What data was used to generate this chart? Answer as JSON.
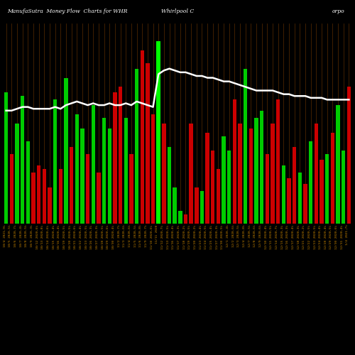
{
  "title_left": "ManufaSutra  Money Flow  Charts for WHR",
  "title_mid": "Whirlpool C",
  "title_right": "orpo",
  "background_color": "#000000",
  "bar_grid_color": "#8B4500",
  "highlight_bar_color": "#00FF00",
  "line_color": "#FFFFFF",
  "bar_colors": [
    "green",
    "red",
    "green",
    "green",
    "green",
    "red",
    "red",
    "red",
    "red",
    "green",
    "red",
    "green",
    "red",
    "green",
    "green",
    "red",
    "green",
    "red",
    "green",
    "green",
    "red",
    "red",
    "green",
    "red",
    "green",
    "red",
    "red",
    "red",
    "green",
    "red",
    "green",
    "green",
    "green",
    "red",
    "red",
    "red",
    "green",
    "red",
    "red",
    "red",
    "green",
    "green",
    "red",
    "red",
    "green",
    "red",
    "green",
    "green",
    "red",
    "red",
    "red",
    "green",
    "red",
    "red",
    "green",
    "red",
    "green",
    "red",
    "red",
    "green",
    "red",
    "green",
    "green",
    "red"
  ],
  "bar_heights": [
    72,
    38,
    55,
    70,
    45,
    28,
    32,
    30,
    20,
    68,
    30,
    80,
    42,
    60,
    52,
    38,
    65,
    28,
    58,
    52,
    72,
    75,
    58,
    38,
    85,
    95,
    88,
    60,
    100,
    55,
    42,
    20,
    7,
    5,
    55,
    20,
    18,
    50,
    40,
    30,
    48,
    40,
    68,
    55,
    85,
    52,
    58,
    62,
    38,
    55,
    68,
    32,
    25,
    42,
    28,
    22,
    45,
    55,
    35,
    38,
    50,
    65,
    40,
    75
  ],
  "highlight_index": 28,
  "line_values": [
    62,
    62,
    63,
    64,
    64,
    63,
    63,
    63,
    63,
    64,
    63,
    65,
    66,
    67,
    66,
    65,
    66,
    65,
    65,
    66,
    65,
    65,
    66,
    65,
    67,
    66,
    65,
    64,
    82,
    84,
    85,
    84,
    83,
    83,
    82,
    81,
    81,
    80,
    80,
    79,
    78,
    78,
    77,
    76,
    75,
    74,
    73,
    73,
    73,
    73,
    72,
    71,
    71,
    70,
    70,
    70,
    69,
    69,
    69,
    68,
    68,
    68,
    68,
    68
  ],
  "x_labels": [
    "10/4 2021,9%",
    "10/5 2020,5%",
    "10/6 2020,7%",
    "10/7 2020,4%",
    "10/8 2020,5%",
    "10/9 2020,3%",
    "10/12 2020,6%",
    "10/13 2020,8%",
    "10/14 2020,6%",
    "10/15 2020,4%",
    "10/16 2020,4%",
    "10/19 2020,5%",
    "10/20 2020,5%",
    "10/21 2020,6%",
    "10/22 2020,4%",
    "10/23 2020,5%",
    "10/26 2020,3%",
    "10/27 2020,3%",
    "10/28 2020,5%",
    "10/29 2020,6%",
    "10/30 2020,4%",
    "11/2 2020,7%",
    "11/3 2020,6%",
    "11/4 2020,6%",
    "11/5 2020,5%",
    "11/6 2020,8%",
    "11/9 2020,7%",
    "11/10 2020,6%",
    "11/11 2020",
    "11/12 2020,7%",
    "11/13 2020,5%",
    "11/16 2020,4%",
    "11/17 2020,3%",
    "11/18 2020,2%",
    "11/19 2020,5%",
    "11/20 2020,2%",
    "11/23 2020,4%",
    "11/24 2020,5%",
    "11/25 2020,4%",
    "11/27 2020,3%",
    "11/30 2020,5%",
    "12/1 2020,4%",
    "12/2 2020,6%",
    "12/3 2020,5%",
    "12/4 2020,8%",
    "12/7 2020,5%",
    "12/8 2020,6%",
    "12/9 2020,6%",
    "12/10 2020,4%",
    "12/11 2020,5%",
    "12/14 2020,7%",
    "12/15 2020,3%",
    "12/16 2020,3%",
    "12/17 2020,4%",
    "12/18 2020,3%",
    "12/21 2020,2%",
    "12/22 2020,5%",
    "12/23 2020,5%",
    "12/24 2020,4%",
    "12/28 2020,4%",
    "12/29 2020,5%",
    "12/30 2020,6%",
    "12/31 2020,4%",
    "1/4 2021,7%"
  ],
  "ylim_max": 110,
  "line_scale_min": 0,
  "line_scale_max": 110
}
